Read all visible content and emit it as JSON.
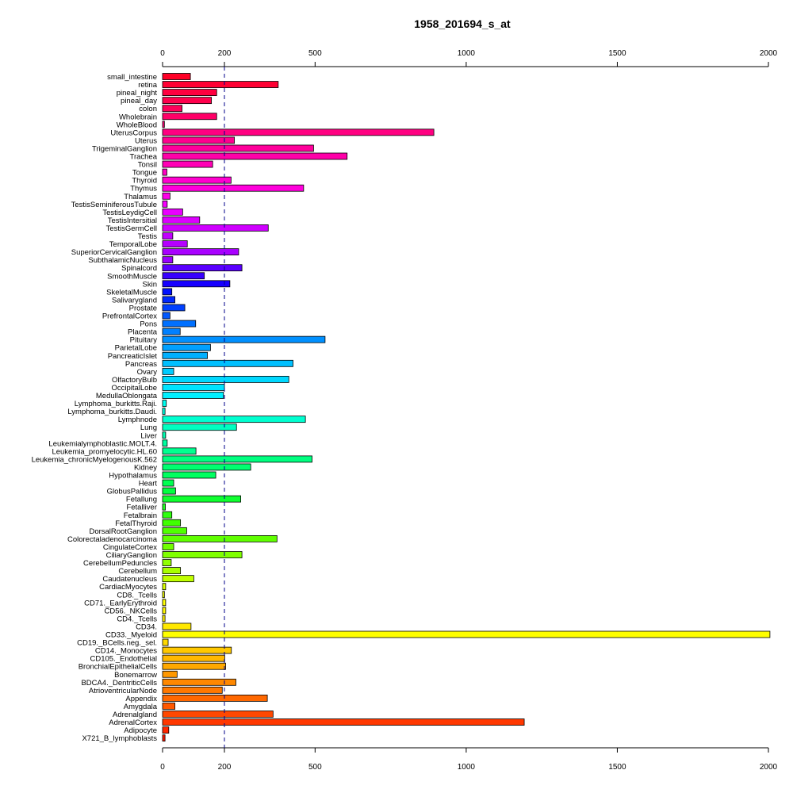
{
  "chart_data": {
    "type": "bar",
    "orientation": "horizontal",
    "title": "1958_201694_s_at",
    "xlabel": "",
    "ylabel": "",
    "xlim": [
      0,
      2000
    ],
    "x_ticks": [
      0,
      200,
      500,
      1000,
      1500,
      2000
    ],
    "x_tick_labels": [
      "0",
      "200",
      "500",
      "1000",
      "1500",
      "2000"
    ],
    "reference_line": 200,
    "grid": false,
    "categories": [
      "small_intestine",
      "retina",
      "pineal_night",
      "pineal_day",
      "colon",
      "Wholebrain",
      "WholeBlood",
      "UterusCorpus",
      "Uterus",
      "TrigeminalGanglion",
      "Trachea",
      "Tonsil",
      "Tongue",
      "Thyroid",
      "Thymus",
      "Thalamus",
      "TestisSeminiferousTubule",
      "TestisLeydigCell",
      "TestisIntersitial",
      "TestisGermCell",
      "Testis",
      "TemporalLobe",
      "SuperiorCervicalGanglion",
      "SubthalamicNucleus",
      "Spinalcord",
      "SmoothMuscle",
      "Skin",
      "SkeletalMuscle",
      "Salivarygland",
      "Prostate",
      "PrefrontalCortex",
      "Pons",
      "Placenta",
      "Pituitary",
      "ParietalLobe",
      "PancreaticIslet",
      "Pancreas",
      "Ovary",
      "OlfactoryBulb",
      "OccipitalLobe",
      "MedullaOblongata",
      "Lymphoma_burkitts.Raji.",
      "Lymphoma_burkitts.Daudi.",
      "Lymphnode",
      "Lung",
      "Liver",
      "Leukemialymphoblastic.MOLT.4.",
      "Leukemia_promyelocytic.HL.60",
      "Leukemia_chronicMyelogenousK.562",
      "Kidney",
      "Hypothalamus",
      "Heart",
      "GlobusPallidus",
      "Fetallung",
      "Fetalliver",
      "Fetalbrain",
      "FetalThyroid",
      "DorsalRootGanglion",
      "Colorectaladenocarcinoma",
      "CingulateCortex",
      "CiliaryGanglion",
      "CerebellumPeduncles",
      "Cerebellum",
      "Caudatenucleus",
      "CardiacMyocytes",
      "CD8._Tcells",
      "CD71._EarlyErythroid",
      "CD56._NKCells",
      "CD4._Tcells",
      "CD34.",
      "CD33._Myeloid",
      "CD19._BCells.neg._sel.",
      "CD14._Monocytes",
      "CD105._Endothelial",
      "BronchialEpithelialCells",
      "Bonemarrow",
      "BDCA4._DentriticCells",
      "AtrioventricularNode",
      "Appendix",
      "Amygdala",
      "Adrenalgland",
      "AdrenalCortex",
      "Adipocyte",
      "X721_B_lymphoblasts"
    ],
    "values": [
      90,
      378,
      175,
      158,
      63,
      175,
      6,
      893,
      233,
      495,
      606,
      162,
      14,
      222,
      462,
      24,
      15,
      65,
      120,
      345,
      33,
      80,
      247,
      33,
      258,
      135,
      218,
      30,
      40,
      72,
      24,
      107,
      57,
      533,
      155,
      145,
      427,
      36,
      413,
      200,
      197,
      12,
      8,
      468,
      240,
      10,
      15,
      108,
      490,
      287,
      172,
      36,
      42,
      254,
      9,
      30,
      58,
      78,
      374,
      36,
      258,
      28,
      58,
      101,
      10,
      6,
      10,
      10,
      8,
      92,
      2005,
      18,
      223,
      201,
      204,
      47,
      238,
      193,
      342,
      40,
      361,
      1192,
      20,
      8
    ],
    "colors": [
      "#FF0026",
      "#FF0033",
      "#FF0040",
      "#FF004D",
      "#FF005A",
      "#FF0067",
      "#FF0074",
      "#FF0081",
      "#FF008E",
      "#FF009B",
      "#FF00A8",
      "#FF00B5",
      "#FF00C2",
      "#FF00CF",
      "#FF00DC",
      "#FF00E9",
      "#F600FF",
      "#E900FF",
      "#DC00FF",
      "#CF00FF",
      "#C200FF",
      "#B500FF",
      "#A800FF",
      "#9B00FF",
      "#5A00FF",
      "#3800FF",
      "#1600FF",
      "#0010FF",
      "#0028FF",
      "#0040FF",
      "#0058FF",
      "#0070FF",
      "#0080FF",
      "#0090FF",
      "#00A0FF",
      "#00B0FF",
      "#00C0FF",
      "#00CCFF",
      "#00D8FF",
      "#00E4FF",
      "#00F0FF",
      "#00FFF0",
      "#00FFE0",
      "#00FFD0",
      "#00FFC0",
      "#00FFB0",
      "#00FFA0",
      "#00FF90",
      "#00FF80",
      "#00FF70",
      "#00FF60",
      "#00FF50",
      "#00FF40",
      "#10FF30",
      "#20FF20",
      "#30FF10",
      "#40FF00",
      "#50FF00",
      "#60FF00",
      "#70FF00",
      "#80FF00",
      "#90FF00",
      "#A8FF00",
      "#C0FF00",
      "#D8FF00",
      "#F0FF00",
      "#FFFF00",
      "#FFF800",
      "#FFF000",
      "#FFE800",
      "#FFFF00",
      "#FFD800",
      "#FFC800",
      "#FFB800",
      "#FFA800",
      "#FF9800",
      "#FF8800",
      "#FF7800",
      "#FF6800",
      "#FF5800",
      "#FF4800",
      "#FF3800",
      "#FF2800",
      "#FF1800"
    ]
  }
}
